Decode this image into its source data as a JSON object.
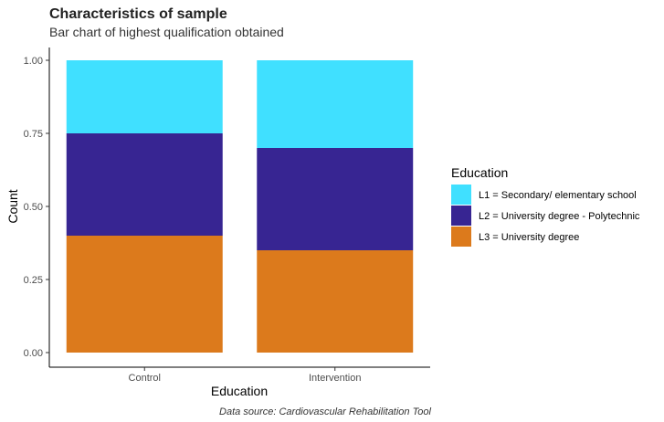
{
  "chart_data": {
    "type": "bar",
    "stacked": true,
    "title": "Characteristics of sample",
    "subtitle": "Bar chart of highest qualification obtained",
    "xlabel": "Education",
    "ylabel": "Count",
    "caption": "Data source: Cardiovascular Rehabilitation Tool",
    "categories": [
      "Control",
      "Intervention"
    ],
    "ylim": [
      0,
      1
    ],
    "yticks": [
      "0.00",
      "0.25",
      "0.50",
      "0.75",
      "1.00"
    ],
    "ytick_values": [
      0,
      0.25,
      0.5,
      0.75,
      1.0
    ],
    "grid": false,
    "legend": {
      "title": "Education",
      "position": "right"
    },
    "series": [
      {
        "name": "L1 = Secondary/ elementary school",
        "values": [
          0.25,
          0.3
        ],
        "color": "#40E0FF"
      },
      {
        "name": "L2 = University degree - Polytechnic",
        "values": [
          0.35,
          0.35
        ],
        "color": "#372592"
      },
      {
        "name": "L3 = University degree",
        "values": [
          0.4,
          0.35
        ],
        "color": "#DC7A1C"
      }
    ],
    "stack_order_bottom_to_top": [
      "L3 = University degree",
      "L2 = University degree - Polytechnic",
      "L1 = Secondary/ elementary school"
    ]
  }
}
